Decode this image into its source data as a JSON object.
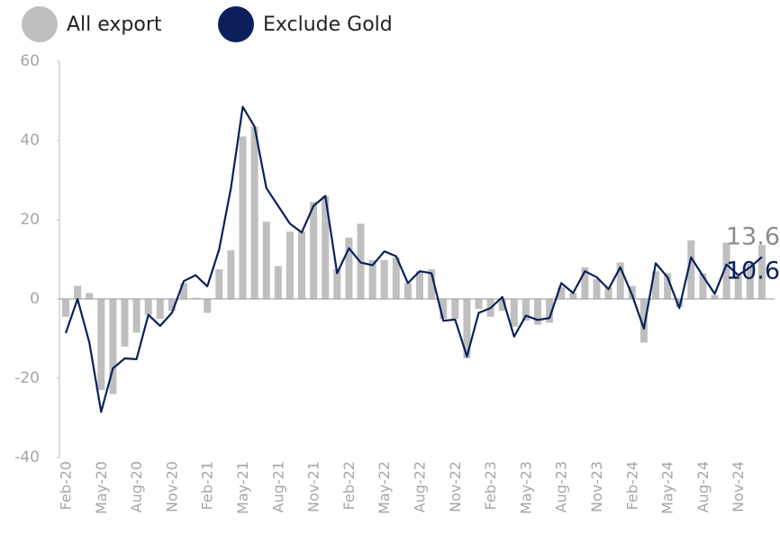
{
  "chart_data": {
    "type": "bar-line",
    "categories": [
      "Feb-20",
      null,
      null,
      "May-20",
      null,
      null,
      "Aug-20",
      null,
      null,
      "Nov-20",
      null,
      null,
      "Feb-21",
      null,
      null,
      "May-21",
      null,
      null,
      "Aug-21",
      null,
      null,
      "Nov-21",
      null,
      null,
      "Feb-22",
      null,
      null,
      "May-22",
      null,
      null,
      "Aug-22",
      null,
      null,
      "Nov-22",
      null,
      null,
      "Feb-23",
      null,
      null,
      "May-23",
      null,
      null,
      "Aug-23",
      null,
      null,
      "Nov-23",
      null,
      null,
      "Feb-24",
      null,
      null,
      "May-24",
      null,
      null,
      "Aug-24",
      null,
      null,
      "Nov-24",
      null,
      null
    ],
    "series": [
      {
        "name": "All export",
        "color": "#bfbfbf",
        "kind": "bar",
        "values": [
          -4.5,
          3.3,
          1.5,
          -23,
          -24,
          -12,
          -8.5,
          -4,
          -5,
          -3,
          4,
          0.3,
          -3.5,
          7.5,
          12.3,
          41,
          43.5,
          19.5,
          8.3,
          17,
          17,
          24.5,
          26,
          7.5,
          15.5,
          19,
          9.8,
          9.8,
          10.5,
          4,
          7,
          7.5,
          -5,
          -5,
          -15,
          -2.5,
          -4.5,
          -3,
          -7,
          -5.5,
          -6.5,
          -6,
          3,
          1.5,
          8,
          5,
          3,
          9.2,
          3.3,
          -11,
          7,
          6.5,
          -2,
          14.8,
          6.5,
          1,
          14.2,
          6,
          9,
          13.6
        ]
      },
      {
        "name": "Exclude Gold",
        "color": "#0a1f5c",
        "kind": "line",
        "values": [
          -8.6,
          0,
          -11,
          -28.5,
          -17.5,
          -15,
          -15.2,
          -4,
          -6.8,
          -3.5,
          4.5,
          6,
          3.2,
          12.5,
          28,
          48.5,
          43.5,
          28,
          23.5,
          19,
          16.8,
          23.5,
          26,
          6.5,
          12.8,
          9.2,
          8.5,
          12,
          10.8,
          4,
          7,
          6.5,
          -5.5,
          -5.2,
          -14.5,
          -3.5,
          -2.3,
          0.5,
          -9.5,
          -4.2,
          -5.3,
          -4.8,
          4,
          1.5,
          7,
          5.5,
          2.5,
          8,
          1,
          -7.5,
          9,
          5.5,
          -2.3,
          10.5,
          5.8,
          1.3,
          8.7,
          6,
          8,
          10.6
        ]
      }
    ],
    "ylim": [
      -40,
      60
    ],
    "yticks": [
      -40,
      -20,
      0,
      20,
      40,
      60
    ]
  }
}
